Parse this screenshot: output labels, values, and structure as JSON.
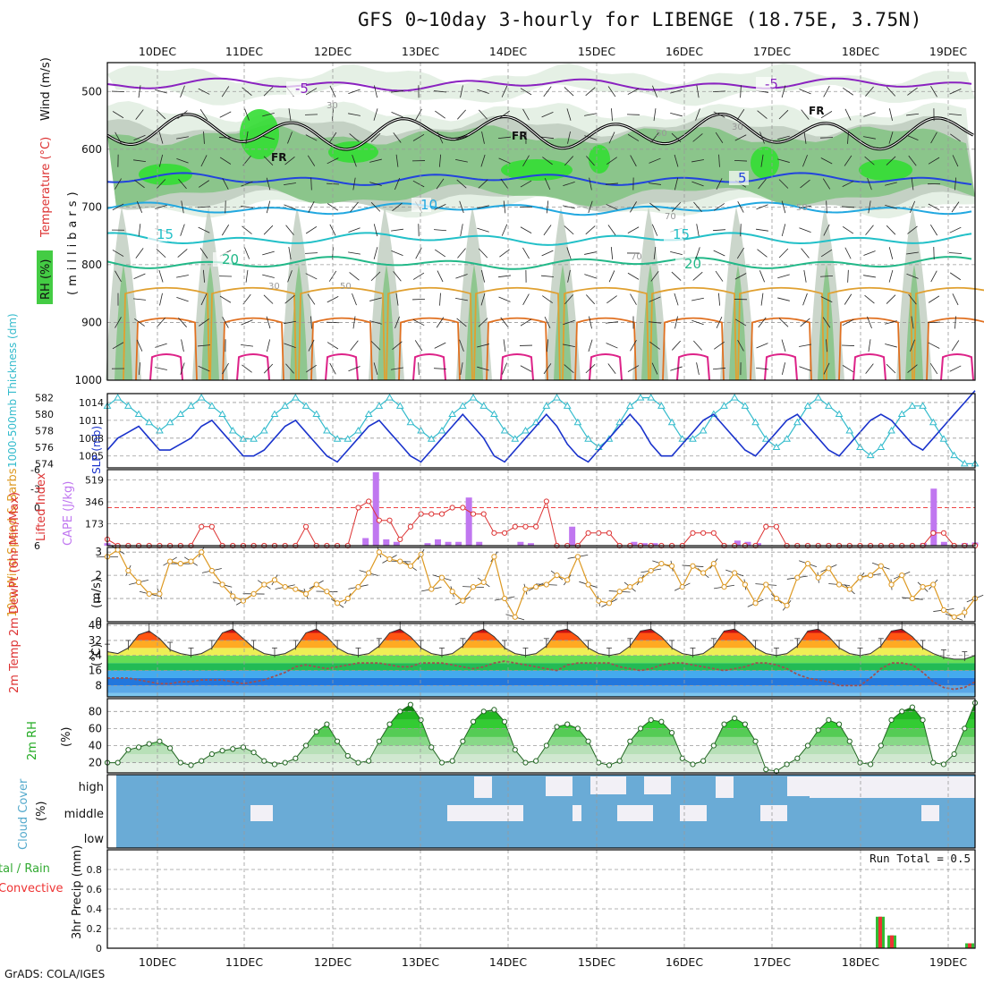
{
  "title": "GFS 0~10day 3-hourly for LIBENGE (18.75E, 3.75N)",
  "credit": "GrADS: COLA/IGES",
  "date_labels": [
    "10DEC",
    "11DEC",
    "12DEC",
    "13DEC",
    "14DEC",
    "15DEC",
    "16DEC",
    "17DEC",
    "18DEC",
    "19DEC"
  ],
  "colors": {
    "frame": "#000000",
    "grid": "#9a9a9a",
    "rh_fill_light": "#e4efe4",
    "rh_fill_mid": "#c2cfc2",
    "rh_fill_dark": "#88c488",
    "rh_fill_green": "#33dd33",
    "iso_m5": "#8a22c0",
    "iso_5": "#2244dd",
    "iso_10": "#22a8e0",
    "iso_15": "#22c0c8",
    "iso_20": "#22b888",
    "iso_25": "#e0a030",
    "iso_30": "#e07020",
    "iso_35": "#dd2288",
    "slp": "#1a33cc",
    "thickness": "#33bbcc",
    "cape": "#c077f0",
    "lifted": "#dd3333",
    "wind": "#dd9922",
    "dewpt": "#a05050",
    "rh_line": "#226622",
    "cloud_blue": "#6aabd6",
    "cloud_white": "#f2f0f6",
    "precip_total": "#33bb33",
    "precip_conv": "#ee3333"
  },
  "panels": {
    "profile": {
      "ylabel_rh": "RH (%)",
      "ylabel_temp": "Temperature (°C)",
      "ylabel_wind": "Wind (m/s)",
      "ylabel_mb": "(millibars)",
      "yticks": [
        500,
        600,
        700,
        800,
        900,
        1000
      ],
      "isotherm_labels": [
        {
          "text": "-5",
          "color": "iso_m5"
        },
        {
          "text": "-5",
          "color": "iso_m5"
        },
        {
          "text": "5",
          "color": "iso_5"
        },
        {
          "text": "10",
          "color": "iso_10"
        },
        {
          "text": "15",
          "color": "iso_15"
        },
        {
          "text": "15",
          "color": "iso_15"
        },
        {
          "text": "20",
          "color": "iso_20"
        },
        {
          "text": "20",
          "color": "iso_20"
        }
      ],
      "freezing_label": "FR",
      "rh_contour_labels": [
        "30",
        "50",
        "30",
        "50",
        "70",
        "30",
        "50",
        "70"
      ]
    },
    "slp": {
      "ylabel_left": "1000-500mb Thickness (dm)",
      "ylabel_right": "SLP (mb)",
      "left_ticks": [
        574,
        576,
        578,
        580,
        582
      ],
      "right_ticks": [
        1005,
        1008,
        1011,
        1014
      ]
    },
    "cape": {
      "ylabel_left": "Lifted Index",
      "ylabel_right": "CAPE (J/kg)",
      "left_ticks": [
        6,
        0,
        -3,
        -6
      ],
      "right_ticks": [
        173,
        346,
        519
      ]
    },
    "wind10": {
      "ylabel": "10m Wind Speed & Barbs",
      "ylabel_unit": "(m/s)",
      "ticks": [
        0,
        1,
        2,
        3
      ]
    },
    "temp2m": {
      "ylabel": "2m Temp 2m DewPt (6hr Min/Max)",
      "ylabel_unit": "(°C)",
      "ticks": [
        8,
        16,
        24,
        32,
        40
      ]
    },
    "rh2m": {
      "ylabel": "2m RH",
      "ylabel_unit": "(%)",
      "ticks": [
        20,
        40,
        60,
        80
      ]
    },
    "cloud": {
      "ylabel": "Cloud Cover",
      "ylabel_unit": "(%)",
      "levels": [
        "high",
        "middle",
        "low"
      ]
    },
    "precip": {
      "ylabel_total": "tal / Rain",
      "ylabel_conv": "Convective",
      "ylabel": "3hr Precip (mm)",
      "ticks": [
        0,
        0.2,
        0.4,
        0.6,
        0.8
      ],
      "run_total_label": "Run Total = 0.5"
    }
  },
  "chart_data": [
    {
      "type": "line",
      "title": "Pressure-level RH / Temperature / Wind",
      "ylabel": "millibars",
      "ylim": [
        1000,
        450
      ],
      "isotherms": [
        {
          "temp_c": -5,
          "pressure_mb": 488
        },
        {
          "temp_c": 0,
          "pressure_mb": 570
        },
        {
          "temp_c": 5,
          "pressure_mb": 652
        },
        {
          "temp_c": 10,
          "pressure_mb": 703
        },
        {
          "temp_c": 15,
          "pressure_mb": 755
        },
        {
          "temp_c": 20,
          "pressure_mb": 797
        }
      ]
    },
    {
      "type": "line",
      "title": "SLP & 1000-500mb Thickness",
      "x_hours_step": 3,
      "series": [
        {
          "name": "SLP (mb)",
          "axis": "right",
          "ylim": [
            1003,
            1015.5
          ],
          "values": [
            1006,
            1008,
            1009,
            1010,
            1008,
            1006,
            1006,
            1007,
            1008,
            1010,
            1011,
            1009,
            1007,
            1005,
            1005,
            1006,
            1008,
            1010,
            1011,
            1009,
            1007,
            1005,
            1004,
            1006,
            1008,
            1010,
            1011,
            1009,
            1007,
            1005,
            1004,
            1006,
            1008,
            1010,
            1012,
            1010,
            1008,
            1005,
            1004,
            1006,
            1008,
            1010,
            1012,
            1010,
            1007,
            1005,
            1004,
            1006,
            1008,
            1010,
            1012,
            1010,
            1007,
            1005,
            1005,
            1007,
            1009,
            1011,
            1012,
            1010,
            1008,
            1006,
            1005,
            1007,
            1009,
            1011,
            1012,
            1010,
            1008,
            1006,
            1005,
            1007,
            1009,
            1011,
            1012,
            1011,
            1009,
            1007,
            1006,
            1008,
            1010,
            1012,
            1014,
            1016
          ]
        },
        {
          "name": "Thickness (dm)",
          "axis": "left",
          "ylim": [
            573.5,
            582.5
          ],
          "values": [
            581,
            582,
            581,
            580,
            579,
            578,
            579,
            580,
            581,
            582,
            581,
            580,
            578,
            577,
            577,
            578,
            580,
            581,
            582,
            581,
            580,
            578,
            577,
            577,
            578,
            580,
            581,
            582,
            581,
            579,
            578,
            577,
            578,
            580,
            581,
            582,
            581,
            580,
            578,
            577,
            578,
            579,
            581,
            582,
            581,
            579,
            577,
            576,
            577,
            579,
            581,
            582,
            582,
            581,
            579,
            577,
            577,
            578,
            580,
            581,
            582,
            581,
            579,
            577,
            576,
            577,
            579,
            581,
            582,
            581,
            580,
            578,
            576,
            575,
            576,
            578,
            580,
            581,
            581,
            579,
            577,
            575,
            574,
            574
          ]
        }
      ]
    },
    {
      "type": "bar",
      "title": "Lifted Index & CAPE",
      "series": [
        {
          "name": "CAPE (J/kg)",
          "ylim": [
            0,
            600
          ],
          "values": [
            20,
            0,
            0,
            0,
            0,
            0,
            0,
            0,
            0,
            0,
            0,
            0,
            0,
            0,
            0,
            0,
            0,
            0,
            0,
            0,
            0,
            0,
            0,
            0,
            0,
            60,
            580,
            50,
            30,
            0,
            0,
            20,
            50,
            30,
            30,
            380,
            30,
            0,
            0,
            0,
            30,
            20,
            0,
            0,
            0,
            150,
            0,
            0,
            0,
            0,
            0,
            30,
            20,
            20,
            0,
            0,
            0,
            0,
            0,
            0,
            0,
            40,
            30,
            20,
            0,
            0,
            0,
            0,
            0,
            0,
            0,
            0,
            0,
            0,
            0,
            0,
            0,
            0,
            0,
            20,
            450,
            30,
            0,
            20,
            25
          ]
        },
        {
          "name": "Lifted Index",
          "ylim": [
            6,
            -6
          ],
          "values": [
            5,
            6,
            6,
            6,
            6,
            6,
            6,
            6,
            6,
            3,
            3,
            6,
            6,
            6,
            6,
            6,
            6,
            6,
            6,
            3,
            6,
            6,
            6,
            6,
            0,
            -1,
            2,
            2,
            5,
            3,
            1,
            1,
            1,
            0,
            0,
            1,
            1,
            4,
            4,
            3,
            3,
            3,
            -1,
            6,
            6,
            6,
            4,
            4,
            4,
            6,
            6,
            6,
            6,
            6,
            6,
            6,
            4,
            4,
            4,
            6,
            6,
            6,
            6,
            3,
            3,
            6,
            6,
            6,
            6,
            6,
            6,
            6,
            6,
            6,
            6,
            6,
            6,
            6,
            6,
            4,
            4,
            6,
            6,
            6
          ]
        }
      ]
    },
    {
      "type": "line",
      "title": "10m Wind Speed",
      "ylabel": "m/s",
      "ylim": [
        0,
        3.2
      ],
      "values": [
        2.8,
        3.1,
        2.2,
        1.7,
        1.2,
        1.2,
        2.6,
        2.5,
        2.6,
        3.0,
        2.2,
        1.6,
        1.1,
        0.9,
        1.2,
        1.6,
        1.8,
        1.5,
        1.4,
        1.2,
        1.6,
        1.3,
        0.8,
        1.0,
        1.5,
        2.1,
        3.0,
        2.7,
        2.6,
        2.4,
        2.9,
        1.4,
        1.9,
        1.3,
        0.9,
        1.5,
        1.7,
        2.8,
        1.0,
        0.2,
        1.4,
        1.5,
        1.6,
        2.0,
        1.8,
        2.8,
        1.6,
        0.9,
        0.8,
        1.3,
        1.5,
        1.8,
        2.2,
        2.5,
        2.4,
        1.5,
        2.4,
        2.1,
        2.5,
        1.5,
        2.1,
        1.6,
        0.8,
        1.6,
        1.0,
        0.7,
        1.9,
        2.5,
        1.9,
        2.3,
        1.6,
        1.4,
        1.9,
        2.0,
        2.4,
        1.6,
        2.0,
        1.0,
        1.5,
        1.6,
        0.5,
        0.2,
        0.4,
        1.0
      ]
    },
    {
      "type": "area",
      "title": "2m Temp & DewPt",
      "ylabel": "°C",
      "ylim": [
        2,
        41
      ],
      "series": [
        {
          "name": "2m Temp",
          "values": [
            26,
            25,
            28,
            35,
            37,
            33,
            27,
            25,
            24,
            25,
            28,
            36,
            38,
            33,
            28,
            25,
            24,
            25,
            28,
            36,
            38,
            34,
            28,
            25,
            24,
            25,
            29,
            36,
            38,
            34,
            28,
            25,
            24,
            25,
            29,
            36,
            38,
            34,
            28,
            25,
            24,
            25,
            29,
            37,
            38,
            34,
            28,
            25,
            24,
            25,
            29,
            37,
            38,
            34,
            28,
            25,
            24,
            25,
            29,
            37,
            38,
            34,
            28,
            25,
            24,
            25,
            29,
            37,
            38,
            34,
            28,
            25,
            24,
            25,
            29,
            37,
            38,
            34,
            28,
            25,
            23,
            22,
            22,
            24
          ]
        },
        {
          "name": "2m DewPt",
          "values": [
            12,
            12,
            12,
            11,
            10,
            9,
            9,
            10,
            10,
            11,
            11,
            11,
            10,
            9,
            10,
            11,
            13,
            15,
            18,
            19,
            18,
            17,
            18,
            19,
            20,
            20,
            20,
            19,
            18,
            18,
            20,
            20,
            20,
            19,
            18,
            17,
            18,
            20,
            21,
            20,
            19,
            18,
            17,
            16,
            19,
            20,
            20,
            20,
            20,
            18,
            17,
            16,
            17,
            19,
            20,
            20,
            19,
            18,
            17,
            16,
            17,
            18,
            20,
            20,
            19,
            17,
            14,
            12,
            11,
            10,
            8,
            8,
            8,
            12,
            17,
            20,
            20,
            19,
            15,
            10,
            7,
            6,
            7,
            10
          ]
        }
      ]
    },
    {
      "type": "area",
      "title": "2m RH",
      "ylabel": "%",
      "ylim": [
        8,
        95
      ],
      "values": [
        20,
        20,
        35,
        38,
        42,
        45,
        37,
        20,
        17,
        22,
        30,
        34,
        36,
        38,
        32,
        22,
        18,
        20,
        25,
        40,
        56,
        65,
        45,
        28,
        20,
        22,
        45,
        65,
        80,
        88,
        70,
        38,
        20,
        22,
        45,
        68,
        80,
        82,
        68,
        35,
        20,
        22,
        40,
        62,
        65,
        60,
        45,
        20,
        17,
        22,
        45,
        60,
        70,
        68,
        55,
        25,
        18,
        22,
        40,
        65,
        72,
        65,
        45,
        12,
        10,
        18,
        25,
        40,
        58,
        70,
        65,
        45,
        20,
        18,
        40,
        70,
        80,
        85,
        70,
        20,
        18,
        30,
        60,
        90
      ]
    },
    {
      "type": "heatmap",
      "title": "Cloud Cover",
      "rows": [
        "high",
        "middle",
        "low"
      ],
      "note": "Predominantly overcast (blue) at all levels; gaps (white) mainly in high cloud late in the run"
    },
    {
      "type": "bar",
      "title": "3hr Precip (mm)",
      "ylim": [
        0,
        1.0
      ],
      "categories": [
        "18DEC 06Z",
        "18DEC 09Z",
        "19DEC 09Z"
      ],
      "series": [
        {
          "name": "Total / Rain",
          "values": [
            0.32,
            0.13,
            0.05
          ]
        },
        {
          "name": "Convective",
          "values": [
            0.32,
            0.13,
            0.05
          ]
        }
      ],
      "run_total": 0.5
    }
  ]
}
